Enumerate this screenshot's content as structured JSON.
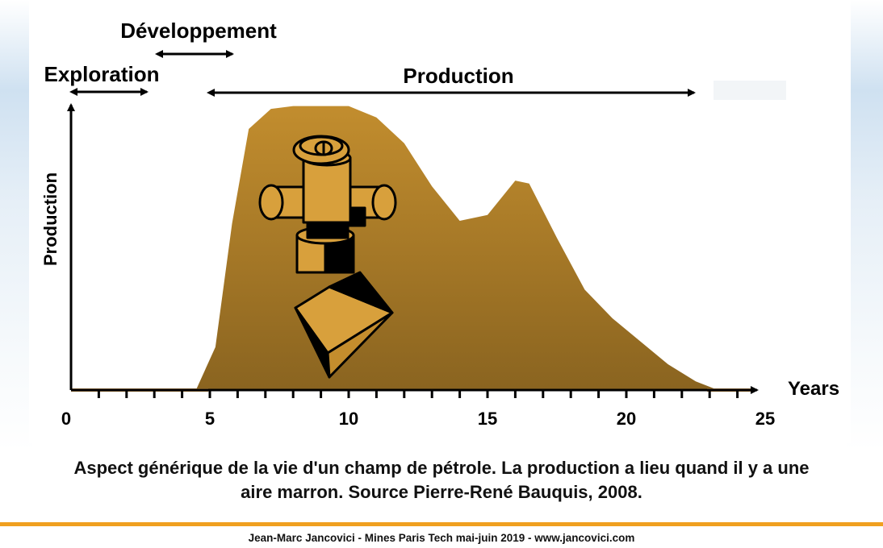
{
  "chart_data": {
    "type": "area",
    "title": "",
    "xlabel": "Years",
    "ylabel": "Production",
    "xlim": [
      0,
      25
    ],
    "ylim": [
      0,
      100
    ],
    "x_ticks": [
      0,
      5,
      10,
      15,
      20,
      25
    ],
    "phases": [
      {
        "label": "Exploration",
        "start": 0,
        "end": 3
      },
      {
        "label": "Développement",
        "start": 3,
        "end": 6
      },
      {
        "label": "Production",
        "start": 5,
        "end": 23
      }
    ],
    "series": [
      {
        "x": [
          4.5,
          5.2,
          5.8,
          6.4,
          7.2,
          8.0,
          9.0,
          10.0,
          11.0,
          12.0,
          13.0,
          14.0,
          15.0,
          16.0,
          16.5,
          17.5,
          18.5,
          19.5,
          20.5,
          21.5,
          22.5,
          23.3
        ],
        "values": [
          0,
          15,
          58,
          91,
          98,
          99,
          99,
          99,
          95,
          86,
          71,
          59,
          61,
          73,
          72,
          53,
          35,
          25,
          17,
          9,
          3,
          0
        ]
      }
    ],
    "fill_color": "#b08029",
    "tool_color": "#c69032",
    "baseline_color": "#c08a3a"
  },
  "caption": {
    "line1": "Aspect générique de la vie d'un champ de pétrole. La production a lieu quand il y a une",
    "line2": "aire marron. Source Pierre-René Bauquis, 2008."
  },
  "footer": {
    "text": "Jean-Marc Jancovici - Mines Paris Tech mai-juin 2019 - www.jancovici.com"
  }
}
